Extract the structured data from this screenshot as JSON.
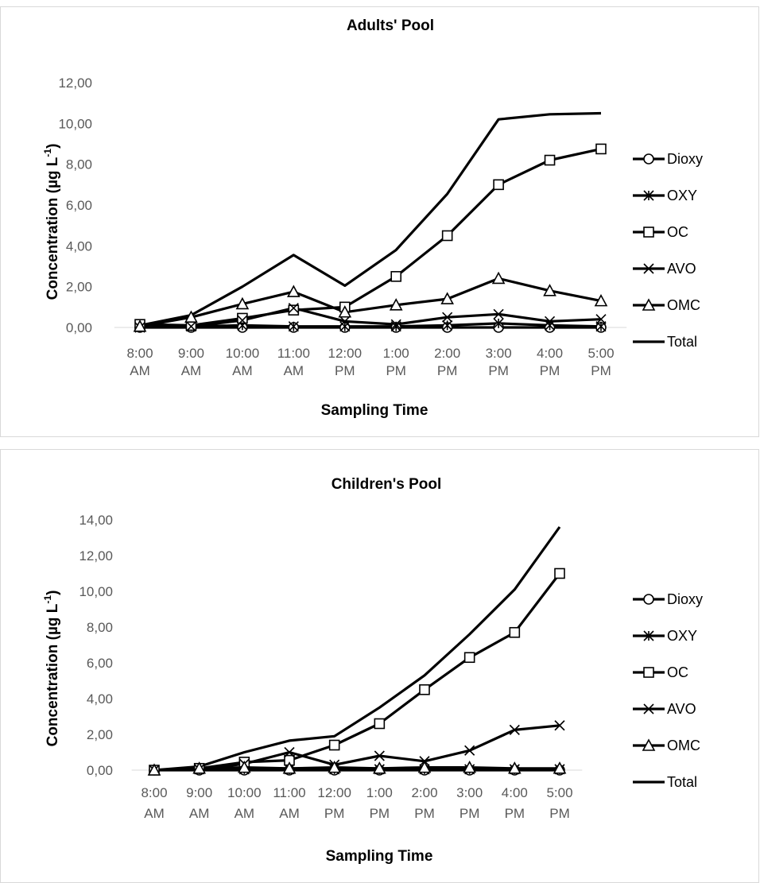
{
  "chart_data": [
    {
      "type": "line",
      "title": "Adults' Pool",
      "xlabel": "Sampling Time",
      "ylabel": "Concentration (µg L⁻¹)",
      "ylabel_parts": {
        "main": "Concentration (µg L",
        "sup": "-1",
        "tail": ")"
      },
      "ylim": [
        0,
        12
      ],
      "ytick_step": 2,
      "ytick_labels": [
        "0,00",
        "2,00",
        "4,00",
        "6,00",
        "8,00",
        "10,00",
        "12,00"
      ],
      "categories": [
        "8:00 AM",
        "9:00 AM",
        "10:00 AM",
        "11:00 AM",
        "12:00 PM",
        "1:00 PM",
        "2:00 PM",
        "3:00 PM",
        "4:00 PM",
        "5:00 PM"
      ],
      "category_lines": [
        [
          "8:00",
          "AM"
        ],
        [
          "9:00",
          "AM"
        ],
        [
          "10:00",
          "AM"
        ],
        [
          "11:00",
          "AM"
        ],
        [
          "12:00",
          "PM"
        ],
        [
          "1:00",
          "PM"
        ],
        [
          "2:00",
          "PM"
        ],
        [
          "3:00",
          "PM"
        ],
        [
          "4:00",
          "PM"
        ],
        [
          "5:00",
          "PM"
        ]
      ],
      "grid": false,
      "legend_position": "right",
      "line_color": "#000000",
      "series": [
        {
          "name": "Dioxy",
          "marker": "circle",
          "values": [
            0,
            0,
            0,
            0,
            0,
            0,
            0,
            0,
            0,
            0
          ]
        },
        {
          "name": "OXY",
          "marker": "asterisk",
          "values": [
            0,
            0.05,
            0.1,
            0.05,
            0.05,
            0.05,
            0.1,
            0.2,
            0.1,
            0.05
          ]
        },
        {
          "name": "OC",
          "marker": "square",
          "values": [
            0.15,
            0.1,
            0.45,
            0.85,
            1.0,
            2.5,
            4.5,
            7.0,
            8.2,
            8.75
          ]
        },
        {
          "name": "AVO",
          "marker": "x",
          "values": [
            0,
            0.05,
            0.35,
            0.95,
            0.3,
            0.15,
            0.5,
            0.65,
            0.3,
            0.4
          ]
        },
        {
          "name": "OMC",
          "marker": "triangle",
          "values": [
            0.05,
            0.5,
            1.15,
            1.75,
            0.75,
            1.1,
            1.4,
            2.4,
            1.8,
            1.3
          ]
        },
        {
          "name": "Total",
          "marker": "none",
          "values": [
            0.1,
            0.6,
            2.0,
            3.55,
            2.05,
            3.8,
            6.55,
            10.2,
            10.45,
            10.5
          ]
        }
      ]
    },
    {
      "type": "line",
      "title": "Children's Pool",
      "xlabel": "Sampling Time",
      "ylabel": "Concentration (µg L⁻¹)",
      "ylabel_parts": {
        "main": "Concentration (µg L",
        "sup": "-1",
        "tail": ")"
      },
      "ylim": [
        0,
        14
      ],
      "ytick_step": 2,
      "ytick_labels": [
        "0,00",
        "2,00",
        "4,00",
        "6,00",
        "8,00",
        "10,00",
        "12,00",
        "14,00"
      ],
      "categories": [
        "8:00 AM",
        "9:00 AM",
        "10:00 AM",
        "11:00 AM",
        "12:00 PM",
        "1:00 PM",
        "2:00 PM",
        "3:00 PM",
        "4:00 PM",
        "5:00 PM"
      ],
      "category_lines": [
        [
          "8:00",
          "AM"
        ],
        [
          "9:00",
          "AM"
        ],
        [
          "10:00",
          "AM"
        ],
        [
          "11:00",
          "AM"
        ],
        [
          "12:00",
          "PM"
        ],
        [
          "1:00",
          "PM"
        ],
        [
          "2:00",
          "PM"
        ],
        [
          "3:00",
          "PM"
        ],
        [
          "4:00",
          "PM"
        ],
        [
          "5:00",
          "PM"
        ]
      ],
      "grid": false,
      "legend_position": "right",
      "line_color": "#000000",
      "series": [
        {
          "name": "Dioxy",
          "marker": "circle",
          "values": [
            0,
            0,
            0,
            0,
            0,
            0,
            0,
            0,
            0,
            0
          ]
        },
        {
          "name": "OXY",
          "marker": "asterisk",
          "values": [
            0,
            0.05,
            0.05,
            0.05,
            0.05,
            0.05,
            0.05,
            0.05,
            0.05,
            0.05
          ]
        },
        {
          "name": "OC",
          "marker": "square",
          "values": [
            0,
            0.1,
            0.45,
            0.55,
            1.4,
            2.6,
            4.5,
            6.3,
            7.7,
            11.0
          ]
        },
        {
          "name": "AVO",
          "marker": "x",
          "values": [
            0,
            0.05,
            0.35,
            1.0,
            0.3,
            0.8,
            0.5,
            1.1,
            2.25,
            2.5
          ]
        },
        {
          "name": "OMC",
          "marker": "triangle",
          "values": [
            0,
            0.1,
            0.15,
            0.1,
            0.15,
            0.1,
            0.15,
            0.15,
            0.1,
            0.1
          ]
        },
        {
          "name": "Total",
          "marker": "none",
          "values": [
            0,
            0.2,
            1.0,
            1.65,
            1.9,
            3.5,
            5.3,
            7.6,
            10.1,
            13.6
          ]
        }
      ]
    }
  ]
}
